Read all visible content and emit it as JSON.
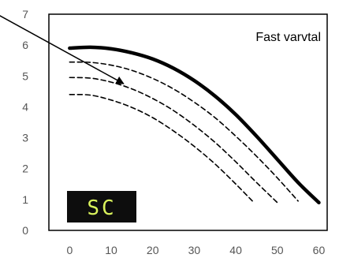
{
  "chart_data": {
    "type": "line",
    "title": "",
    "annotation": "Fast varvtal",
    "badge": "SC",
    "xlabel": "",
    "ylabel": "",
    "xlim": [
      -5,
      62
    ],
    "ylim": [
      0,
      7
    ],
    "x_ticks": [
      0,
      10,
      20,
      30,
      40,
      50,
      60
    ],
    "y_ticks": [
      0,
      1,
      2,
      3,
      4,
      5,
      6,
      7
    ],
    "grid": false,
    "series": [
      {
        "style": "solid",
        "x": [
          0,
          5,
          10,
          15,
          20,
          25,
          30,
          35,
          40,
          45,
          50,
          55,
          60
        ],
        "y": [
          5.9,
          5.93,
          5.88,
          5.75,
          5.55,
          5.25,
          4.85,
          4.35,
          3.75,
          3.05,
          2.3,
          1.55,
          0.9
        ]
      },
      {
        "style": "dashed",
        "x": [
          0,
          5,
          10,
          15,
          20,
          25,
          30,
          35,
          40,
          45,
          50,
          55
        ],
        "y": [
          5.45,
          5.44,
          5.35,
          5.18,
          4.92,
          4.58,
          4.15,
          3.65,
          3.05,
          2.4,
          1.7,
          0.95
        ]
      },
      {
        "style": "dashed",
        "x": [
          0,
          5,
          10,
          15,
          20,
          25,
          30,
          35,
          40,
          45,
          50
        ],
        "y": [
          4.95,
          4.93,
          4.8,
          4.58,
          4.27,
          3.88,
          3.4,
          2.85,
          2.22,
          1.55,
          0.9
        ]
      },
      {
        "style": "dashed",
        "x": [
          0,
          5,
          10,
          15,
          20,
          25,
          30,
          35,
          40,
          44
        ],
        "y": [
          4.4,
          4.38,
          4.22,
          3.98,
          3.65,
          3.22,
          2.72,
          2.15,
          1.5,
          0.95
        ]
      }
    ],
    "arrow": {
      "from": [
        -19.5,
        7.15
      ],
      "to": [
        13,
        4.75
      ]
    },
    "colors": {
      "line": "#000000",
      "tick_text": "#555555",
      "badge_bg": "#0d0d0d",
      "badge_text": "#d9f25c"
    }
  }
}
